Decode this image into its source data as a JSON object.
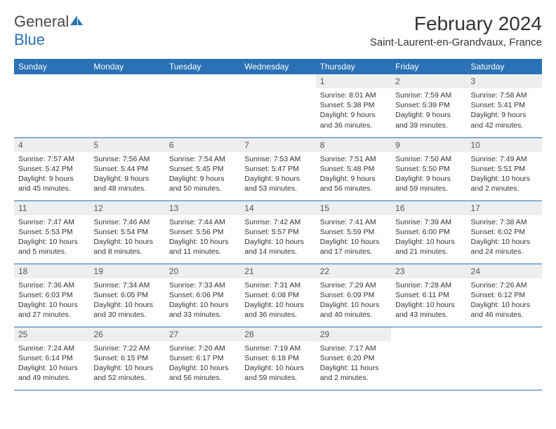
{
  "brand": {
    "part1": "General",
    "part2": "Blue"
  },
  "title": "February 2024",
  "location": "Saint-Laurent-en-Grandvaux, France",
  "colors": {
    "accent": "#2a72b5",
    "daynum_bg": "#eeeeee"
  },
  "dayHeaders": [
    "Sunday",
    "Monday",
    "Tuesday",
    "Wednesday",
    "Thursday",
    "Friday",
    "Saturday"
  ],
  "weeks": [
    [
      null,
      null,
      null,
      null,
      {
        "n": "1",
        "sunrise": "8:01 AM",
        "sunset": "5:38 PM",
        "daylight": "9 hours and 36 minutes."
      },
      {
        "n": "2",
        "sunrise": "7:59 AM",
        "sunset": "5:39 PM",
        "daylight": "9 hours and 39 minutes."
      },
      {
        "n": "3",
        "sunrise": "7:58 AM",
        "sunset": "5:41 PM",
        "daylight": "9 hours and 42 minutes."
      }
    ],
    [
      {
        "n": "4",
        "sunrise": "7:57 AM",
        "sunset": "5:42 PM",
        "daylight": "9 hours and 45 minutes."
      },
      {
        "n": "5",
        "sunrise": "7:56 AM",
        "sunset": "5:44 PM",
        "daylight": "9 hours and 48 minutes."
      },
      {
        "n": "6",
        "sunrise": "7:54 AM",
        "sunset": "5:45 PM",
        "daylight": "9 hours and 50 minutes."
      },
      {
        "n": "7",
        "sunrise": "7:53 AM",
        "sunset": "5:47 PM",
        "daylight": "9 hours and 53 minutes."
      },
      {
        "n": "8",
        "sunrise": "7:51 AM",
        "sunset": "5:48 PM",
        "daylight": "9 hours and 56 minutes."
      },
      {
        "n": "9",
        "sunrise": "7:50 AM",
        "sunset": "5:50 PM",
        "daylight": "9 hours and 59 minutes."
      },
      {
        "n": "10",
        "sunrise": "7:49 AM",
        "sunset": "5:51 PM",
        "daylight": "10 hours and 2 minutes."
      }
    ],
    [
      {
        "n": "11",
        "sunrise": "7:47 AM",
        "sunset": "5:53 PM",
        "daylight": "10 hours and 5 minutes."
      },
      {
        "n": "12",
        "sunrise": "7:46 AM",
        "sunset": "5:54 PM",
        "daylight": "10 hours and 8 minutes."
      },
      {
        "n": "13",
        "sunrise": "7:44 AM",
        "sunset": "5:56 PM",
        "daylight": "10 hours and 11 minutes."
      },
      {
        "n": "14",
        "sunrise": "7:42 AM",
        "sunset": "5:57 PM",
        "daylight": "10 hours and 14 minutes."
      },
      {
        "n": "15",
        "sunrise": "7:41 AM",
        "sunset": "5:59 PM",
        "daylight": "10 hours and 17 minutes."
      },
      {
        "n": "16",
        "sunrise": "7:39 AM",
        "sunset": "6:00 PM",
        "daylight": "10 hours and 21 minutes."
      },
      {
        "n": "17",
        "sunrise": "7:38 AM",
        "sunset": "6:02 PM",
        "daylight": "10 hours and 24 minutes."
      }
    ],
    [
      {
        "n": "18",
        "sunrise": "7:36 AM",
        "sunset": "6:03 PM",
        "daylight": "10 hours and 27 minutes."
      },
      {
        "n": "19",
        "sunrise": "7:34 AM",
        "sunset": "6:05 PM",
        "daylight": "10 hours and 30 minutes."
      },
      {
        "n": "20",
        "sunrise": "7:33 AM",
        "sunset": "6:06 PM",
        "daylight": "10 hours and 33 minutes."
      },
      {
        "n": "21",
        "sunrise": "7:31 AM",
        "sunset": "6:08 PM",
        "daylight": "10 hours and 36 minutes."
      },
      {
        "n": "22",
        "sunrise": "7:29 AM",
        "sunset": "6:09 PM",
        "daylight": "10 hours and 40 minutes."
      },
      {
        "n": "23",
        "sunrise": "7:28 AM",
        "sunset": "6:11 PM",
        "daylight": "10 hours and 43 minutes."
      },
      {
        "n": "24",
        "sunrise": "7:26 AM",
        "sunset": "6:12 PM",
        "daylight": "10 hours and 46 minutes."
      }
    ],
    [
      {
        "n": "25",
        "sunrise": "7:24 AM",
        "sunset": "6:14 PM",
        "daylight": "10 hours and 49 minutes."
      },
      {
        "n": "26",
        "sunrise": "7:22 AM",
        "sunset": "6:15 PM",
        "daylight": "10 hours and 52 minutes."
      },
      {
        "n": "27",
        "sunrise": "7:20 AM",
        "sunset": "6:17 PM",
        "daylight": "10 hours and 56 minutes."
      },
      {
        "n": "28",
        "sunrise": "7:19 AM",
        "sunset": "6:18 PM",
        "daylight": "10 hours and 59 minutes."
      },
      {
        "n": "29",
        "sunrise": "7:17 AM",
        "sunset": "6:20 PM",
        "daylight": "11 hours and 2 minutes."
      },
      null,
      null
    ]
  ],
  "labels": {
    "sunrise": "Sunrise: ",
    "sunset": "Sunset: ",
    "daylight": "Daylight: "
  }
}
